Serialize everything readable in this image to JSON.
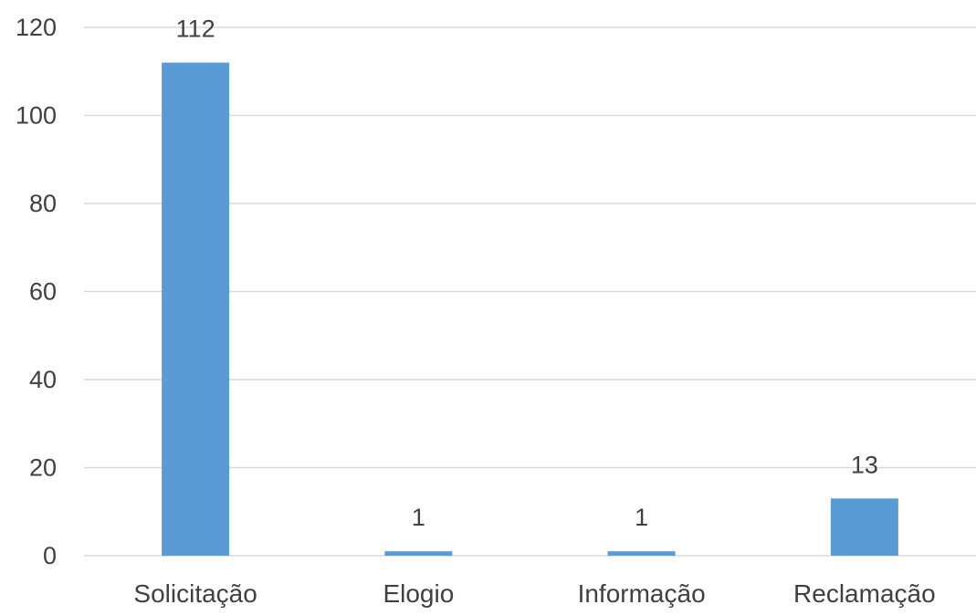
{
  "chart_data": {
    "type": "bar",
    "title": "",
    "xlabel": "",
    "ylabel": "",
    "categories": [
      "Solicitação",
      "Elogio",
      "Informação",
      "Reclamação"
    ],
    "values": [
      112,
      1,
      1,
      13
    ],
    "data_labels": [
      "112",
      "1",
      "1",
      "13"
    ],
    "ylim": [
      0,
      120
    ],
    "yticks": [
      0,
      20,
      40,
      60,
      80,
      100,
      120
    ],
    "ytick_labels": [
      "0",
      "20",
      "40",
      "60",
      "80",
      "100",
      "120"
    ],
    "grid": true,
    "legend": "none",
    "colors": {
      "bar": "#5b9bd5",
      "grid": "#d9d9d9",
      "text": "#404040"
    }
  }
}
